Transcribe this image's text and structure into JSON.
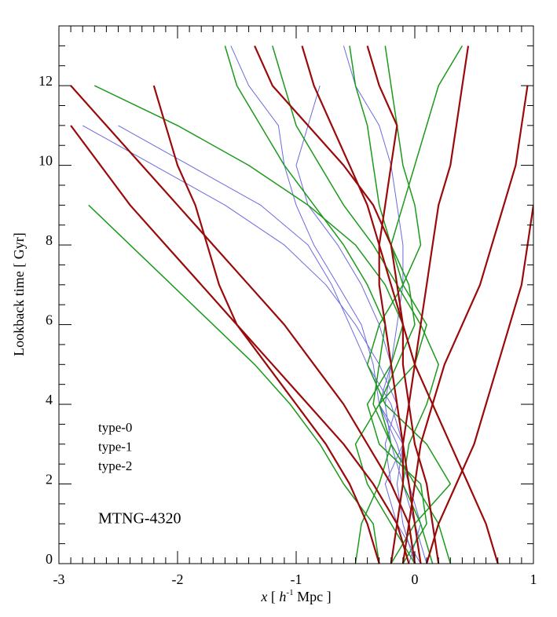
{
  "chart_data": {
    "type": "line",
    "xlabel_parts": [
      "x",
      " [ ",
      "h",
      "-1",
      " Mpc ]"
    ],
    "ylabel": "Lookback time [ Gyr]",
    "annotation": "MTNG-4320",
    "xlim": [
      -3,
      1
    ],
    "ylim": [
      0,
      13.5
    ],
    "xticks": [
      -3,
      -2,
      -1,
      0,
      1
    ],
    "yticks": [
      0,
      2,
      4,
      6,
      8,
      10,
      12
    ],
    "xminorticks": [
      -2.9,
      -2.8,
      -2.7,
      -2.6,
      -2.5,
      -2.4,
      -2.3,
      -2.2,
      -2.1,
      -1.9,
      -1.8,
      -1.7,
      -1.6,
      -1.5,
      -1.4,
      -1.3,
      -1.2,
      -1.1,
      -0.9,
      -0.8,
      -0.7,
      -0.6,
      -0.5,
      -0.4,
      -0.3,
      -0.2,
      -0.1,
      0.1,
      0.2,
      0.3,
      0.4,
      0.5,
      0.6,
      0.7,
      0.8,
      0.9
    ],
    "yminorticks": [
      0.5,
      1,
      1.5,
      2.5,
      3,
      3.5,
      4.5,
      5,
      5.5,
      6.5,
      7,
      7.5,
      8.5,
      9,
      9.5,
      10.5,
      11,
      11.5,
      12.5,
      13,
      13.5
    ],
    "y": [
      0,
      1,
      2,
      3,
      4,
      5,
      6,
      7,
      8,
      9,
      10,
      11,
      12,
      13
    ],
    "series": [
      {
        "name": "type-0",
        "color": "#9b0a0a",
        "width": 2.2,
        "tracks": [
          [
            -0.05,
            -0.15,
            -0.35,
            -0.6,
            -0.9,
            -1.2,
            -1.5,
            -1.8,
            -2.1,
            -2.4,
            -2.65,
            -2.9,
            null,
            null
          ],
          [
            0.0,
            -0.05,
            -0.2,
            -0.4,
            -0.6,
            -0.85,
            -1.1,
            -1.4,
            -1.7,
            -2.0,
            -2.3,
            -2.6,
            -2.9,
            null
          ],
          [
            0.05,
            0.0,
            -0.05,
            -0.1,
            -0.15,
            -0.2,
            -0.25,
            -0.3,
            -0.3,
            -0.25,
            -0.2,
            -0.15,
            -0.3,
            -0.4
          ],
          [
            0.2,
            0.15,
            0.1,
            0.0,
            -0.05,
            -0.1,
            -0.1,
            -0.15,
            -0.2,
            -0.35,
            -0.6,
            -0.9,
            -1.2,
            -1.35
          ],
          [
            -0.1,
            -0.05,
            0.0,
            0.05,
            0.15,
            0.25,
            0.4,
            0.55,
            0.65,
            0.75,
            0.85,
            0.9,
            0.95,
            null
          ],
          [
            0.7,
            0.6,
            0.45,
            0.3,
            0.15,
            0.0,
            -0.1,
            -0.2,
            -0.3,
            -0.4,
            -0.55,
            -0.7,
            -0.85,
            -0.95
          ],
          [
            -0.2,
            -0.15,
            -0.1,
            -0.1,
            -0.05,
            0.0,
            0.05,
            0.1,
            0.15,
            0.2,
            0.3,
            0.35,
            0.4,
            0.45
          ],
          [
            0.1,
            0.2,
            0.35,
            0.5,
            0.6,
            0.7,
            0.8,
            0.9,
            0.95,
            1.0,
            null,
            null,
            null,
            null
          ],
          [
            -0.3,
            -0.4,
            -0.55,
            -0.75,
            -1.0,
            -1.25,
            -1.5,
            -1.65,
            -1.75,
            -1.85,
            -2.0,
            -2.1,
            -2.2,
            null
          ]
        ]
      },
      {
        "name": "type-1",
        "color": "#1b9a1b",
        "width": 1.5,
        "tracks": [
          [
            -0.5,
            -0.45,
            -0.3,
            -0.2,
            -0.35,
            -0.3,
            -0.25,
            -0.4,
            -0.6,
            -0.85,
            -1.1,
            -1.3,
            -1.5,
            -1.6
          ],
          [
            0.3,
            0.2,
            0.0,
            -0.2,
            -0.3,
            -0.15,
            0.0,
            -0.05,
            -0.2,
            -0.3,
            -0.35,
            -0.4,
            -0.5,
            -0.55
          ],
          [
            -0.1,
            0.1,
            0.05,
            -0.3,
            -0.4,
            -0.2,
            -0.1,
            -0.25,
            -0.5,
            -0.9,
            -1.4,
            -2.0,
            -2.7,
            null
          ],
          [
            0.0,
            -0.2,
            -0.4,
            -0.5,
            -0.3,
            0.0,
            0.1,
            -0.1,
            -0.2,
            -0.1,
            0.0,
            0.1,
            0.2,
            0.4
          ],
          [
            -0.3,
            -0.35,
            -0.6,
            -0.8,
            -1.05,
            -1.35,
            -1.7,
            -2.05,
            -2.4,
            -2.75,
            null,
            null,
            null,
            null
          ],
          [
            0.15,
            0.05,
            -0.1,
            -0.05,
            0.1,
            0.2,
            0.05,
            -0.15,
            -0.35,
            -0.6,
            -0.8,
            -1.0,
            -1.1,
            -1.2
          ],
          [
            -0.2,
            0.0,
            0.3,
            0.1,
            -0.25,
            -0.4,
            -0.3,
            -0.1,
            0.05,
            0.0,
            -0.1,
            -0.15,
            -0.2,
            -0.25
          ]
        ]
      },
      {
        "name": "type-2",
        "color": "#6a6ae0",
        "width": 1,
        "tracks": [
          [
            0.0,
            -0.1,
            -0.15,
            -0.1,
            -0.3,
            -0.35,
            -0.45,
            -0.65,
            -0.85,
            -1.0,
            -1.1,
            -1.15,
            -1.4,
            -1.55
          ],
          [
            -0.1,
            -0.05,
            -0.2,
            -0.25,
            -0.15,
            -0.3,
            -0.5,
            -0.75,
            -1.1,
            -1.6,
            -2.2,
            -2.8,
            null,
            null
          ],
          [
            0.1,
            0.0,
            -0.1,
            -0.2,
            -0.25,
            -0.2,
            -0.3,
            -0.45,
            -0.65,
            -0.9,
            -1.0,
            -0.9,
            -0.8,
            null
          ],
          [
            -0.05,
            0.05,
            -0.05,
            -0.15,
            -0.3,
            -0.2,
            -0.15,
            -0.1,
            -0.1,
            -0.15,
            -0.2,
            -0.3,
            -0.5,
            -0.6
          ],
          [
            0.05,
            -0.15,
            -0.25,
            -0.1,
            -0.2,
            -0.4,
            -0.55,
            -0.7,
            -0.9,
            -1.3,
            -1.9,
            -2.5,
            null,
            null
          ]
        ]
      }
    ]
  }
}
